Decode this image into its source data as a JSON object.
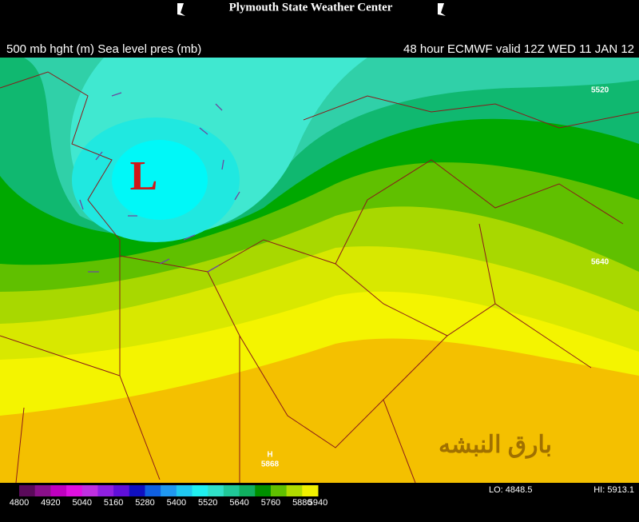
{
  "header": {
    "title": "Plymouth State Weather Center"
  },
  "map": {
    "field_label": "500 mb hght (m) Sea level pres (mb)",
    "valid_label": "48 hour ECMWF valid 12Z WED 11 JAN 12",
    "contour_labels": [
      "5520",
      "5640",
      "5868"
    ],
    "low_label": "L",
    "high_label": "H",
    "watermark": "بارق النبشه"
  },
  "colorbar": {
    "ticks": [
      4800,
      4920,
      5040,
      5160,
      5280,
      5400,
      5520,
      5640,
      5760,
      5880,
      5940
    ],
    "colors": [
      "#5a0a5a",
      "#8a108a",
      "#c000c0",
      "#e010e0",
      "#c030e0",
      "#9020e0",
      "#6010d8",
      "#1010c0",
      "#1060e0",
      "#2098f0",
      "#20c8f0",
      "#20f0f0",
      "#30e0c8",
      "#20c898",
      "#10b060",
      "#009000",
      "#60c000",
      "#b0dc00",
      "#f0f000"
    ],
    "lo": "LO: 4848.5",
    "hi": "HI: 5913.1"
  }
}
